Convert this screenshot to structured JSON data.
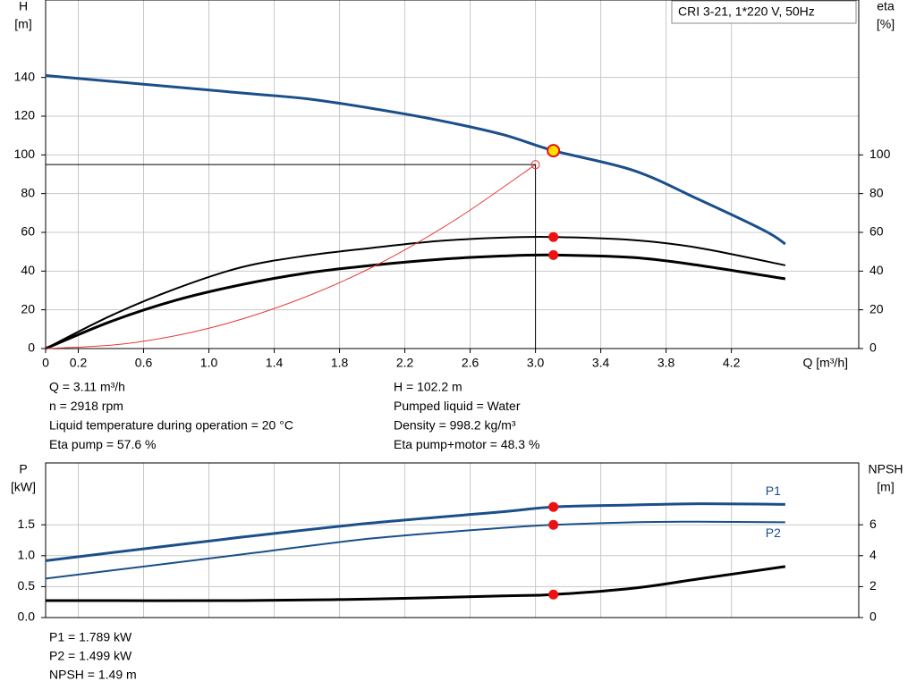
{
  "model": "CRI 3-21, 1*220 V, 50Hz",
  "chart_data": [
    {
      "type": "line",
      "xlabel": "Q [m³/h]",
      "ylabel": [
        "H",
        "[m]"
      ],
      "y2label": [
        "eta",
        "[%]"
      ],
      "xlim": [
        0,
        4.98
      ],
      "ylim": [
        0,
        180
      ],
      "y2lim": [
        0,
        180
      ],
      "xticks": [
        0,
        0.2,
        0.6,
        {
          "value": 1,
          "label": "1.0"
        },
        1.4,
        1.8,
        2.2,
        2.6,
        {
          "value": 3,
          "label": "3.0"
        },
        3.4,
        3.8,
        4.2
      ],
      "yticks": [
        0,
        20,
        40,
        60,
        80,
        100,
        120,
        140
      ],
      "y2ticks": [
        0,
        20,
        40,
        60,
        80,
        100
      ],
      "grid": true,
      "series": [
        {
          "color": "#1a4f8a",
          "width": 3,
          "x": [
            0,
            1.2,
            1.6,
            2.0,
            2.4,
            2.8,
            3.11,
            3.6,
            4.0,
            4.4,
            4.53
          ],
          "values": [
            141,
            132,
            129,
            124,
            118,
            110.5,
            102.2,
            92,
            77,
            61,
            54
          ]
        },
        {
          "color": "#000000",
          "width": 2,
          "axis": "y2",
          "x": [
            0,
            0.4,
            0.8,
            1.2,
            1.6,
            2.0,
            2.4,
            2.8,
            3.11,
            3.6,
            4.0,
            4.53
          ],
          "values": [
            0,
            17,
            31,
            42,
            48,
            52,
            55.5,
            57.3,
            57.6,
            56,
            52,
            43
          ]
        },
        {
          "color": "#000000",
          "width": 3,
          "axis": "y2",
          "x": [
            0,
            0.4,
            0.8,
            1.2,
            1.6,
            2.0,
            2.4,
            2.8,
            3.11,
            3.6,
            4.0,
            4.53
          ],
          "values": [
            0,
            14,
            25,
            33,
            39,
            43,
            46,
            47.8,
            48.3,
            47,
            43,
            36
          ]
        },
        {
          "color": "#e83a3a",
          "width": 1,
          "x": [
            0,
            0.5,
            1.0,
            1.5,
            2.0,
            2.5,
            3.0
          ],
          "values": [
            0,
            2.6,
            10.5,
            23.7,
            42,
            66,
            95
          ]
        }
      ],
      "operating_point": {
        "x": 3.11,
        "y": 102.2,
        "y2": [
          57.6,
          48.3
        ]
      }
    },
    {
      "type": "line",
      "ylabel": [
        "P",
        "[kW]"
      ],
      "y2label": [
        "NPSH",
        "[m]"
      ],
      "xlim": [
        0,
        4.98
      ],
      "ylim": [
        0,
        2.5
      ],
      "y2lim": [
        0,
        10
      ],
      "yticks": [
        {
          "value": 0,
          "label": "0.0"
        },
        0.5,
        {
          "value": 1,
          "label": "1.0"
        },
        1.5
      ],
      "y2ticks": [
        0,
        2,
        4,
        6
      ],
      "grid": true,
      "series": [
        {
          "name": "P1",
          "color": "#1a4f8a",
          "width": 3,
          "x": [
            0,
            1.2,
            2.0,
            2.8,
            3.11,
            3.6,
            4.0,
            4.53
          ],
          "values": [
            0.92,
            1.3,
            1.53,
            1.71,
            1.789,
            1.82,
            1.84,
            1.83
          ]
        },
        {
          "name": "P2",
          "color": "#1a4f8a",
          "width": 2,
          "x": [
            0,
            1.2,
            2.0,
            2.8,
            3.11,
            3.6,
            4.0,
            4.53
          ],
          "values": [
            0.63,
            1.02,
            1.28,
            1.45,
            1.499,
            1.54,
            1.55,
            1.54
          ]
        },
        {
          "color": "#000000",
          "width": 3,
          "axis": "y2",
          "x": [
            0,
            1.2,
            2.0,
            2.8,
            3.11,
            3.6,
            4.0,
            4.53
          ],
          "values": [
            1.1,
            1.1,
            1.2,
            1.4,
            1.49,
            1.9,
            2.5,
            3.3
          ]
        }
      ],
      "operating_point": {
        "x": 3.11,
        "y": [
          1.789,
          1.499
        ],
        "y2": [
          1.49
        ]
      }
    }
  ],
  "info": {
    "top_left": [
      "Q = 3.11 m³/h",
      "n = 2918 rpm",
      "Liquid temperature during operation = 20 °C",
      "Eta pump = 57.6 %"
    ],
    "top_right": [
      "H = 102.2 m",
      "Pumped liquid = Water",
      "Density = 998.2 kg/m³",
      "Eta pump+motor = 48.3 %"
    ],
    "bottom": [
      "P1 = 1.789 kW",
      "P2 = 1.499 kW",
      "NPSH = 1.49 m"
    ]
  }
}
